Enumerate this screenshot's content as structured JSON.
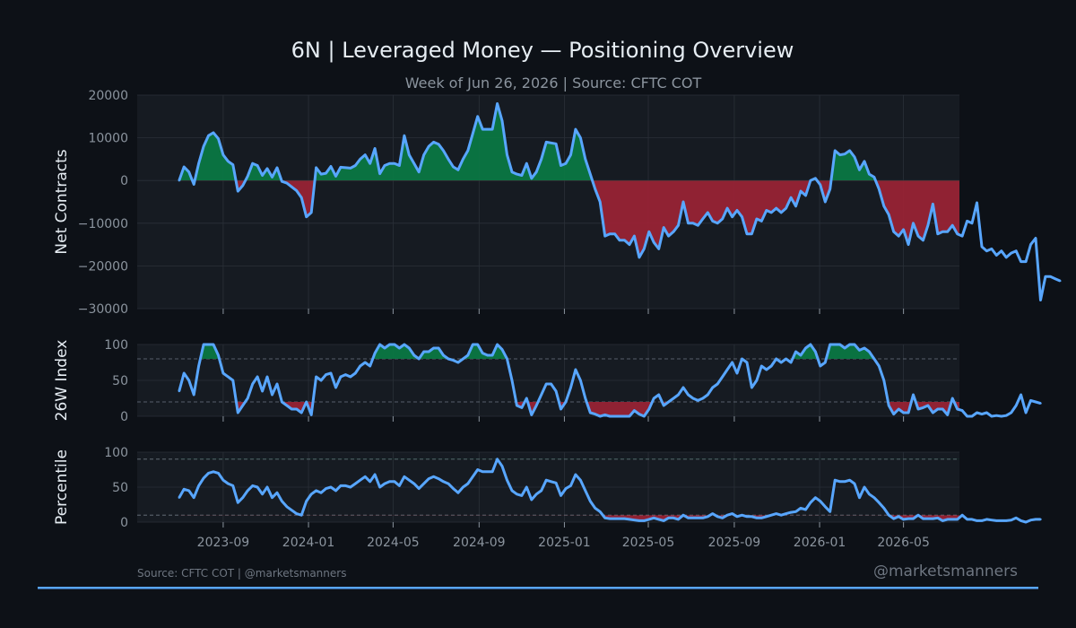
{
  "title": "6N | Leveraged Money — Positioning Overview",
  "subtitle": "Week of Jun 26, 2026 | Source: CFTC COT",
  "footer_left": "Source: CFTC COT | @marketsmanners",
  "footer_right": "@marketsmanners",
  "colors": {
    "background": "#0d1117",
    "panel": "#161b22",
    "line": "#58a6ff",
    "positive": "#0a7a44",
    "negative": "#9b2335",
    "grid": "#2a3038",
    "text": "#e6edf3",
    "muted": "#8b949e",
    "accent": "#58a6ff"
  },
  "chart_data": [
    {
      "type": "area",
      "ylabel": "Net Contracts",
      "ylim": [
        -30000,
        20000
      ],
      "yticks": [
        20000,
        10000,
        0,
        -10000,
        -20000,
        -30000
      ],
      "fill": "sign relative to 0",
      "grid": true,
      "series": [
        {
          "x_start": "2023-06-30",
          "step": "weekly",
          "values": [
            0,
            3200,
            2000,
            -900,
            4000,
            8000,
            10500,
            11200,
            9800,
            6000,
            4500,
            3700,
            -2500,
            -1200,
            1000,
            4000,
            3500,
            1200,
            2800,
            800,
            3000,
            -200,
            -600,
            -1500,
            -2400,
            -4000,
            -8500,
            -7500,
            3000,
            1500,
            1700,
            3300,
            1000,
            3100,
            3000,
            2900,
            3500,
            5000,
            6000,
            4000,
            7500,
            1600,
            3500,
            4000,
            4000,
            3500,
            10500,
            6000,
            4000,
            2000,
            6000,
            8000,
            9000,
            8500,
            7000,
            5000,
            3200,
            2500,
            5000,
            7000,
            11000,
            15000,
            12000,
            12000,
            12000,
            18000,
            14000,
            6000,
            2000,
            1500,
            1200,
            4000,
            500,
            2000,
            5000,
            9000,
            8800,
            8600,
            3500,
            4000,
            6000,
            12000,
            10000,
            5000,
            1500,
            -2000,
            -5000,
            -13000,
            -12500,
            -12500,
            -14000,
            -14000,
            -15000,
            -13000,
            -18000,
            -16000,
            -12000,
            -14500,
            -16000,
            -11000,
            -13000,
            -12000,
            -10500,
            -5000,
            -10000,
            -10000,
            -10500,
            -9000,
            -7500,
            -9500,
            -10000,
            -9000,
            -6500,
            -8500,
            -7000,
            -8500,
            -12500,
            -12500,
            -9000,
            -9500,
            -7000,
            -7500,
            -6500,
            -7500,
            -6500,
            -4000,
            -6000,
            -2500,
            -3500,
            0,
            500,
            -1000,
            -5000,
            -2000,
            7000,
            6000,
            6200,
            7000,
            5500,
            2500,
            4500,
            1500,
            800,
            -2000,
            -6000,
            -8000,
            -12000,
            -13000,
            -11500,
            -15000,
            -10000,
            -13000,
            -14000,
            -10500,
            -5500,
            -12500,
            -12000,
            -12000,
            -10500,
            -12500,
            -13000,
            -9500,
            -10000,
            -5200,
            -15500,
            -16500,
            -16000,
            -17500,
            -16500,
            -18000,
            -17000,
            -16500,
            -19000,
            -19000,
            -15000,
            -13500,
            -28000,
            -22500,
            -22500,
            -23000,
            -23500
          ]
        }
      ]
    },
    {
      "type": "line",
      "ylabel": "26W Index",
      "ylim": [
        0,
        100
      ],
      "yticks": [
        100,
        50,
        0
      ],
      "reference_lines": [
        80,
        20
      ],
      "fill": "above 80 green, below 20 red",
      "grid": true,
      "series": [
        {
          "x_start": "2023-06-30",
          "step": "weekly",
          "values": [
            35,
            60,
            50,
            30,
            70,
            100,
            100,
            100,
            85,
            60,
            55,
            50,
            5,
            15,
            25,
            45,
            55,
            35,
            55,
            30,
            45,
            20,
            15,
            10,
            10,
            5,
            20,
            2,
            55,
            50,
            58,
            60,
            40,
            55,
            58,
            55,
            60,
            70,
            75,
            70,
            88,
            100,
            95,
            100,
            100,
            95,
            100,
            95,
            85,
            80,
            90,
            90,
            95,
            95,
            85,
            80,
            78,
            75,
            80,
            85,
            100,
            100,
            88,
            85,
            85,
            100,
            93,
            80,
            50,
            15,
            12,
            25,
            2,
            15,
            30,
            45,
            45,
            35,
            10,
            20,
            40,
            65,
            50,
            25,
            5,
            3,
            0,
            2,
            0,
            0,
            0,
            0,
            0,
            8,
            3,
            0,
            10,
            25,
            30,
            15,
            20,
            25,
            30,
            40,
            30,
            25,
            22,
            25,
            30,
            40,
            45,
            55,
            65,
            75,
            60,
            80,
            75,
            40,
            50,
            70,
            65,
            70,
            80,
            75,
            80,
            75,
            90,
            85,
            95,
            100,
            90,
            70,
            75,
            100,
            100,
            100,
            95,
            100,
            100,
            92,
            95,
            90,
            80,
            70,
            50,
            15,
            3,
            10,
            5,
            5,
            30,
            10,
            12,
            15,
            5,
            10,
            10,
            2,
            25,
            10,
            8,
            0,
            0,
            5,
            3,
            5,
            0,
            1,
            0,
            1,
            5,
            15,
            30,
            5,
            22,
            20,
            18
          ]
        }
      ]
    },
    {
      "type": "line",
      "ylabel": "Percentile",
      "ylim": [
        0,
        100
      ],
      "yticks": [
        100,
        50,
        0
      ],
      "reference_lines": [
        90,
        10
      ],
      "fill": "above 90 green, below 10 red",
      "grid": true,
      "series": [
        {
          "x_start": "2023-06-30",
          "step": "weekly",
          "values": [
            35,
            47,
            45,
            35,
            52,
            63,
            70,
            72,
            70,
            60,
            55,
            52,
            28,
            35,
            45,
            52,
            50,
            40,
            50,
            35,
            42,
            30,
            22,
            17,
            12,
            10,
            30,
            40,
            45,
            42,
            48,
            50,
            45,
            52,
            52,
            50,
            55,
            60,
            65,
            58,
            68,
            50,
            55,
            58,
            58,
            52,
            65,
            60,
            55,
            48,
            55,
            62,
            65,
            62,
            58,
            55,
            48,
            42,
            50,
            55,
            65,
            75,
            72,
            72,
            72,
            90,
            80,
            60,
            45,
            40,
            38,
            50,
            32,
            40,
            45,
            60,
            58,
            56,
            38,
            48,
            52,
            68,
            60,
            45,
            30,
            20,
            15,
            6,
            5,
            5,
            5,
            5,
            4,
            3,
            2,
            2,
            4,
            6,
            4,
            2,
            6,
            6,
            4,
            10,
            6,
            6,
            6,
            6,
            8,
            12,
            8,
            6,
            10,
            12,
            8,
            10,
            8,
            8,
            6,
            6,
            8,
            10,
            12,
            10,
            12,
            14,
            15,
            20,
            18,
            28,
            35,
            30,
            22,
            15,
            60,
            58,
            58,
            60,
            55,
            35,
            50,
            40,
            35,
            28,
            20,
            10,
            5,
            8,
            4,
            5,
            5,
            10,
            5,
            5,
            5,
            6,
            2,
            4,
            4,
            4,
            10,
            4,
            4,
            2,
            2,
            4,
            3,
            2,
            2,
            2,
            3,
            6,
            2,
            0,
            3,
            4,
            4
          ]
        }
      ]
    }
  ],
  "x_ticks": [
    "2023-09",
    "2024-01",
    "2024-05",
    "2024-09",
    "2025-01",
    "2025-05",
    "2025-09",
    "2026-01",
    "2026-05"
  ]
}
